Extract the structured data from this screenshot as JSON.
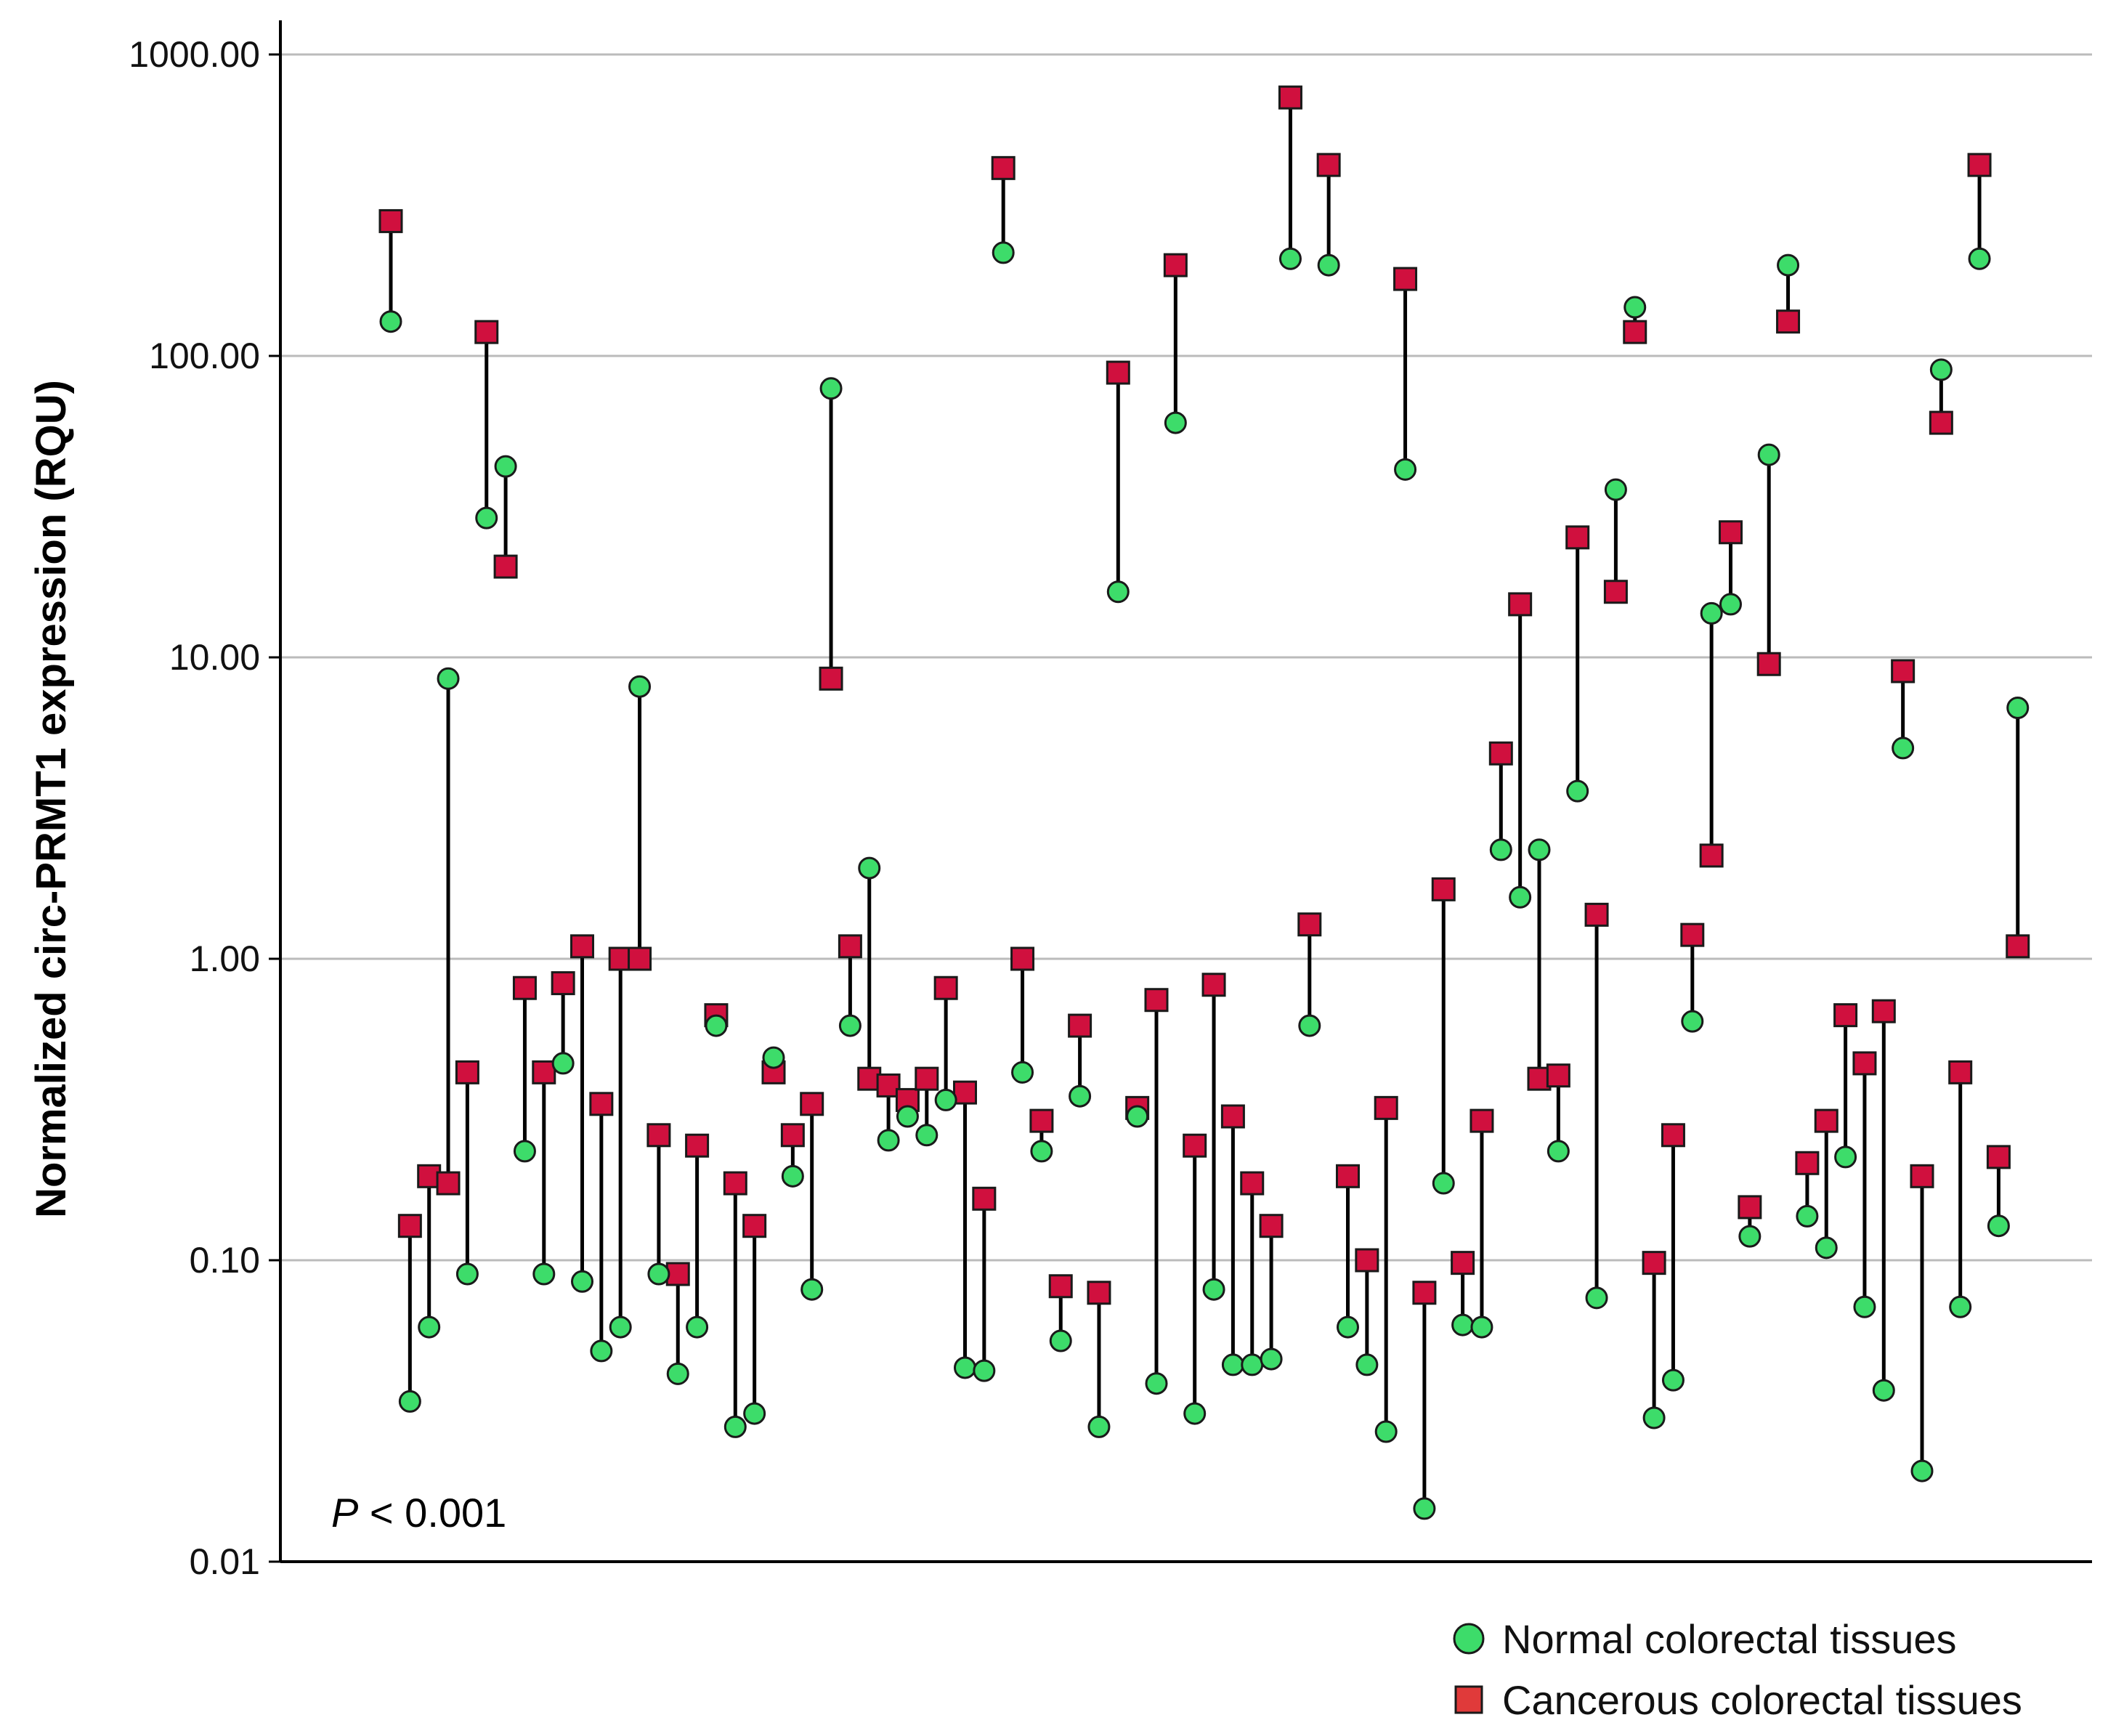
{
  "chart_data": {
    "type": "scatter",
    "subtype": "paired-dot-plot",
    "title": "",
    "xlabel": "",
    "ylabel": "Normalized circ-PRMT1 expression (RQU)",
    "yscale": "log10",
    "ylim": [
      0.01,
      1000
    ],
    "yticks": [
      0.01,
      0.1,
      1,
      10,
      100,
      1000
    ],
    "ytick_labels": [
      "0.01",
      "0.10",
      "1.00",
      "10.00",
      "100.00",
      "1000.00"
    ],
    "grid": true,
    "annotation": {
      "italic": "P",
      "text": " < 0.001"
    },
    "legend": {
      "position": "bottom-right",
      "entries": [
        {
          "label": "Normal colorectal tissues",
          "marker": "circle",
          "color": "#3ddc6a"
        },
        {
          "label": "Cancerous colorectal tissues",
          "marker": "square",
          "color": "#d0103e"
        }
      ]
    },
    "colors": {
      "normal": "#3ddc6a",
      "cancer": "#d0103e",
      "line": "#000000",
      "grid": "#bbbbbb"
    },
    "series": [
      {
        "name": "Normal colorectal tissues",
        "values": [
          130,
          0.034,
          0.06,
          8.5,
          0.09,
          29,
          43,
          0.23,
          0.09,
          0.45,
          0.085,
          0.05,
          0.06,
          8,
          0.09,
          0.042,
          0.06,
          0.6,
          0.028,
          0.031,
          0.47,
          0.19,
          0.08,
          78,
          0.6,
          2,
          0.25,
          0.3,
          0.26,
          0.34,
          0.044,
          0.043,
          220,
          0.42,
          0.23,
          0.054,
          0.35,
          0.028,
          16.5,
          0.3,
          0.039,
          60,
          0.031,
          0.08,
          0.045,
          0.045,
          0.047,
          210,
          0.6,
          200,
          0.06,
          0.045,
          0.027,
          42,
          0.015,
          0.18,
          0.061,
          0.06,
          2.3,
          1.6,
          2.3,
          0.23,
          3.6,
          0.075,
          36,
          145,
          0.03,
          0.04,
          0.62,
          14,
          15,
          0.12,
          47,
          200,
          0.14,
          0.11,
          0.22,
          0.07,
          0.037,
          5,
          0.02,
          90,
          0.07,
          210,
          0.13,
          6.8
        ]
      },
      {
        "name": "Cancerous colorectal tissues",
        "values": [
          280,
          0.13,
          0.19,
          0.18,
          0.42,
          120,
          20,
          0.8,
          0.42,
          0.83,
          1.1,
          0.33,
          1,
          1,
          0.26,
          0.09,
          0.24,
          0.65,
          0.18,
          0.13,
          0.42,
          0.26,
          0.33,
          8.5,
          1.1,
          0.4,
          0.38,
          0.34,
          0.4,
          0.8,
          0.36,
          0.16,
          420,
          1,
          0.29,
          0.082,
          0.6,
          0.078,
          88,
          0.32,
          0.73,
          200,
          0.24,
          0.82,
          0.3,
          0.18,
          0.13,
          720,
          1.3,
          430,
          0.19,
          0.1,
          0.32,
          180,
          0.078,
          1.7,
          0.098,
          0.29,
          4.8,
          15,
          0.4,
          0.41,
          25,
          1.4,
          16.5,
          120,
          0.098,
          0.26,
          1.2,
          2.2,
          26,
          0.15,
          9.5,
          130,
          0.21,
          0.29,
          0.65,
          0.45,
          0.67,
          9,
          0.19,
          60,
          0.42,
          430,
          0.22,
          1.1
        ]
      }
    ]
  }
}
